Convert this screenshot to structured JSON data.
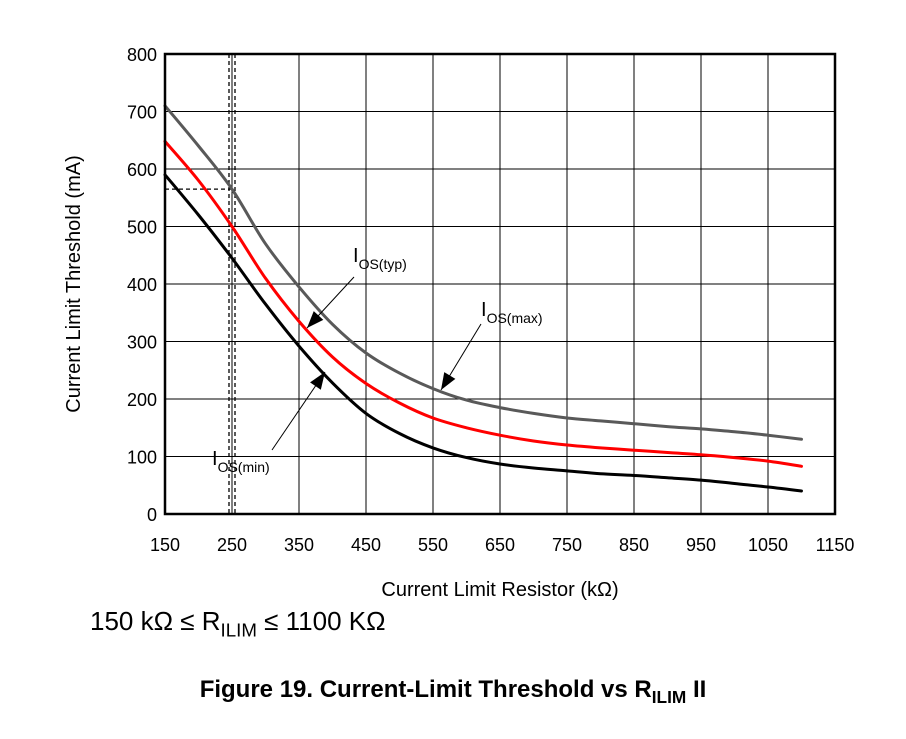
{
  "chart_data": {
    "type": "line",
    "title": "",
    "xlabel": "Current Limit Resistor (kΩ)",
    "ylabel": "Current Limit Threshold (mA)",
    "xlim": [
      150,
      1150
    ],
    "ylim": [
      0,
      800
    ],
    "xticks": [
      150,
      250,
      350,
      450,
      550,
      650,
      750,
      850,
      950,
      1050,
      1150
    ],
    "yticks": [
      0,
      100,
      200,
      300,
      400,
      500,
      600,
      700,
      800
    ],
    "grid": true,
    "legend": "none",
    "series": [
      {
        "name": "IOS(max)",
        "label_main": "I",
        "label_sub": "OS(max)",
        "color": "#595959",
        "x": [
          150,
          200,
          250,
          300,
          350,
          400,
          450,
          500,
          550,
          600,
          650,
          700,
          750,
          800,
          850,
          900,
          950,
          1000,
          1050,
          1100
        ],
        "y": [
          710,
          640,
          565,
          470,
          395,
          330,
          280,
          245,
          218,
          198,
          185,
          175,
          167,
          162,
          157,
          152,
          148,
          143,
          137,
          130
        ]
      },
      {
        "name": "IOS(typ)",
        "label_main": "I",
        "label_sub": "OS(typ)",
        "color": "#ff0000",
        "x": [
          150,
          200,
          250,
          300,
          350,
          400,
          450,
          500,
          550,
          600,
          650,
          700,
          750,
          800,
          850,
          900,
          950,
          1000,
          1050,
          1100
        ],
        "y": [
          648,
          580,
          500,
          410,
          335,
          273,
          227,
          193,
          167,
          150,
          137,
          127,
          120,
          115,
          111,
          107,
          103,
          98,
          92,
          83
        ]
      },
      {
        "name": "IOS(min)",
        "label_main": "I",
        "label_sub": "OS(min)",
        "color": "#000000",
        "x": [
          150,
          200,
          250,
          300,
          350,
          400,
          450,
          500,
          550,
          600,
          650,
          700,
          750,
          800,
          850,
          900,
          950,
          1000,
          1050,
          1100
        ],
        "y": [
          590,
          520,
          445,
          365,
          292,
          228,
          175,
          140,
          115,
          98,
          87,
          80,
          75,
          70,
          67,
          63,
          59,
          53,
          47,
          40
        ]
      }
    ],
    "reference_lines": {
      "x": 250,
      "y": 565
    }
  },
  "notes": {
    "range_prefix": "150 kΩ ≤ R",
    "range_sub": "ILIM",
    "range_suffix": " ≤ 1100 KΩ"
  },
  "caption": {
    "prefix": "Figure 19. Current-Limit Threshold vs R",
    "sub": "ILIM",
    "suffix": " II"
  }
}
